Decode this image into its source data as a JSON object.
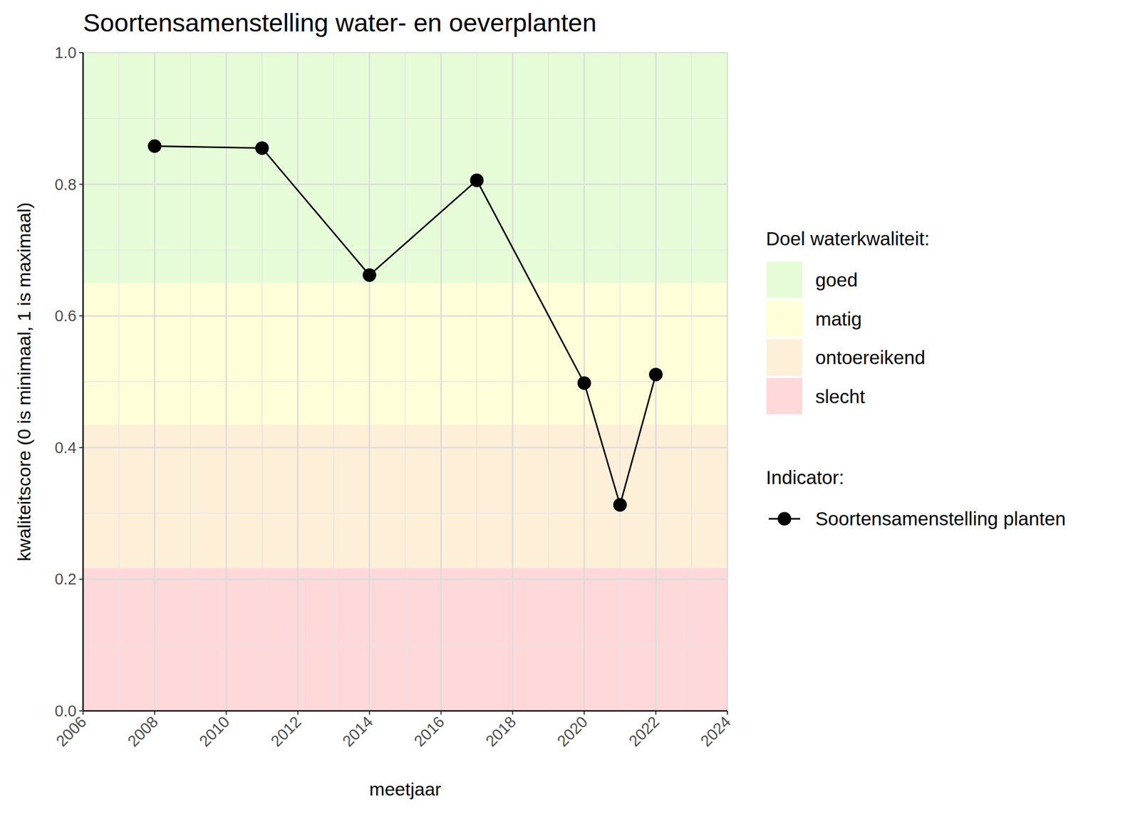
{
  "chart_data": {
    "type": "line",
    "title": "Soortensamenstelling water- en oeverplanten",
    "x_label": "meetjaar",
    "y_label": "kwaliteitscore (0 is minimaal, 1 is maximaal)",
    "x": [
      2008,
      2011,
      2014,
      2017,
      2020,
      2021,
      2022
    ],
    "series": [
      {
        "name": "Soortensamenstelling planten",
        "color": "#000000",
        "marker": "circle",
        "line_style": "solid",
        "values": [
          0.858,
          0.855,
          0.662,
          0.806,
          0.498,
          0.313,
          0.511
        ]
      }
    ],
    "xlim": [
      2006,
      2024
    ],
    "xticks": [
      2006,
      2008,
      2010,
      2012,
      2014,
      2016,
      2018,
      2020,
      2022,
      2024
    ],
    "ylim": [
      0,
      1
    ],
    "yticks": [
      {
        "value": 0,
        "label": "0.0"
      },
      0.2,
      0.4,
      0.6,
      0.8,
      {
        "value": 1,
        "label": "1.0"
      }
    ],
    "grid": true,
    "band_legend_title": "Doel waterkwaliteit:",
    "series_legend_title": "Indicator:",
    "bands": [
      {
        "name": "goed",
        "color": "#e6fcd8",
        "from": 0.65,
        "to": 1
      },
      {
        "name": "matig",
        "color": "#fefed8",
        "from": 0.435,
        "to": 0.65
      },
      {
        "name": "ontoereikend",
        "color": "#fdefd8",
        "from": 0.217,
        "to": 0.435
      },
      {
        "name": "slecht",
        "color": "#ffd8da",
        "from": 0,
        "to": 0.217
      }
    ],
    "legend": "right"
  }
}
